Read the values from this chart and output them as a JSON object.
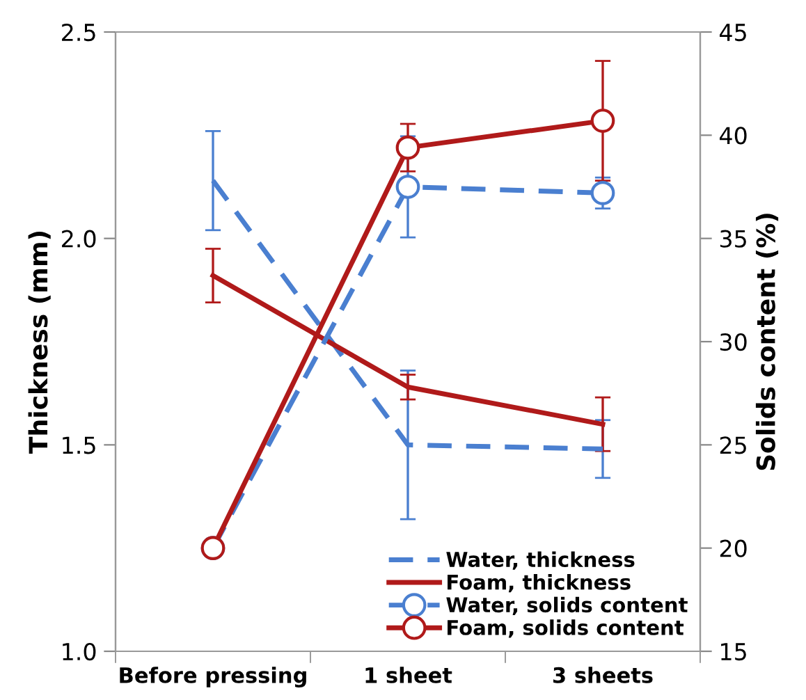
{
  "chart_data": {
    "type": "line",
    "categories": [
      "Before pressing",
      "1 sheet",
      "3 sheets"
    ],
    "ylabel": "Thickness (mm)",
    "y2label": "Solids content (%)",
    "ylim": [
      1.0,
      2.5
    ],
    "yticks": [
      {
        "value": 1.0,
        "label": "1.0"
      },
      {
        "value": 1.5,
        "label": "1.5"
      },
      {
        "value": 2.0,
        "label": "2.0"
      },
      {
        "value": 2.5,
        "label": "2.5"
      }
    ],
    "y2lim": [
      15,
      45
    ],
    "y2ticks": [
      15,
      20,
      25,
      30,
      35,
      40,
      45
    ],
    "grid": false,
    "legend": "bottom right",
    "series": [
      {
        "name": "Water, thickness",
        "color": "#4a7fd0",
        "values": [
          2.14,
          1.5,
          1.49
        ],
        "errors": [
          0.12,
          0.18,
          0.07
        ],
        "line_style": "dashed",
        "marker": "none"
      },
      {
        "name": "Foam, thickness",
        "color": "#b01a1a",
        "values": [
          1.91,
          1.64,
          1.55
        ],
        "errors": [
          0.065,
          0.03,
          0.065
        ],
        "line_style": "solid",
        "marker": "none"
      },
      {
        "name": "Water, solids content",
        "color": "#4a7fd0",
        "values": [
          20.0,
          37.5,
          37.2
        ],
        "errors": [
          null,
          2.45,
          0.75
        ],
        "line_style": "dashed",
        "marker": "circle",
        "axis": "y2"
      },
      {
        "name": "Foam, solids content",
        "color": "#b01a1a",
        "values": [
          20.0,
          39.4,
          40.7
        ],
        "errors": [
          null,
          1.15,
          2.9
        ],
        "line_style": "solid",
        "marker": "circle",
        "axis": "y2"
      }
    ]
  }
}
